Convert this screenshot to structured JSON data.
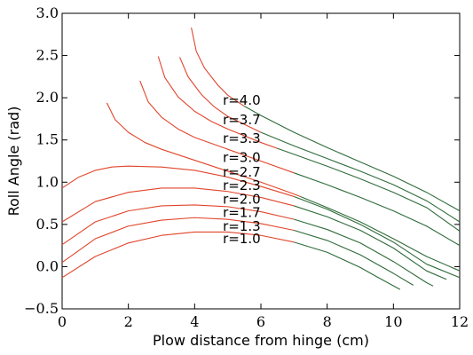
{
  "chart_data": {
    "type": "line",
    "title": "",
    "xlabel": "Plow distance from hinge (cm)",
    "ylabel": "Roll Angle (rad)",
    "xlim": [
      0,
      12
    ],
    "ylim": [
      -0.5,
      3.0
    ],
    "xticks": [
      0,
      2,
      4,
      6,
      8,
      10,
      12
    ],
    "yticks": [
      -0.5,
      0.0,
      0.5,
      1.0,
      1.5,
      2.0,
      2.5,
      3.0
    ],
    "grid": false,
    "colors": {
      "segment_a": "#e0452b",
      "segment_b": "#2f6b3a"
    },
    "label_anchor": {
      "x": 4.85
    },
    "series": [
      {
        "name": "r=1.0",
        "label_y": 0.34,
        "split_x": 7.0,
        "x": [
          0,
          1,
          2,
          3,
          4,
          5,
          6,
          7,
          8,
          9,
          9.5,
          10.2
        ],
        "y": [
          -0.13,
          0.12,
          0.28,
          0.37,
          0.41,
          0.41,
          0.37,
          0.29,
          0.17,
          -0.01,
          -0.12,
          -0.27
        ]
      },
      {
        "name": "r=1.3",
        "label_y": 0.49,
        "split_x": 7.0,
        "x": [
          0,
          1,
          2,
          3,
          4,
          5,
          6,
          7,
          8,
          9,
          10,
          10.6
        ],
        "y": [
          0.05,
          0.33,
          0.48,
          0.55,
          0.58,
          0.56,
          0.51,
          0.43,
          0.31,
          0.14,
          -0.08,
          -0.22
        ]
      },
      {
        "name": "r=1.7",
        "label_y": 0.65,
        "split_x": 7.0,
        "x": [
          0,
          1,
          2,
          3,
          4,
          5,
          6,
          7,
          8,
          9,
          10,
          11,
          11.2
        ],
        "y": [
          0.26,
          0.53,
          0.66,
          0.72,
          0.73,
          0.71,
          0.65,
          0.56,
          0.44,
          0.28,
          0.06,
          -0.19,
          -0.23
        ]
      },
      {
        "name": "r=2.0",
        "label_y": 0.81,
        "split_x": 7.0,
        "x": [
          0,
          1,
          2,
          3,
          4,
          5,
          6,
          7,
          8,
          9,
          10,
          11,
          11.6
        ],
        "y": [
          0.53,
          0.77,
          0.88,
          0.93,
          0.93,
          0.89,
          0.82,
          0.72,
          0.59,
          0.43,
          0.22,
          -0.05,
          -0.15
        ]
      },
      {
        "name": "r=2.3",
        "label_y": 0.97,
        "split_x": 7.0,
        "x": [
          0,
          0.5,
          1,
          1.5,
          2,
          3,
          4,
          5,
          6,
          7,
          8,
          9,
          10,
          11,
          12
        ],
        "y": [
          0.93,
          1.06,
          1.14,
          1.18,
          1.19,
          1.18,
          1.14,
          1.06,
          0.95,
          0.83,
          0.68,
          0.5,
          0.29,
          0.03,
          -0.13
        ]
      },
      {
        "name": "r=2.7",
        "label_y": 1.13,
        "split_x": 7.2,
        "x": [
          1.35,
          1.6,
          2,
          2.5,
          3,
          4,
          5,
          6,
          7,
          8,
          9,
          10,
          11,
          12
        ],
        "y": [
          1.94,
          1.74,
          1.59,
          1.47,
          1.39,
          1.26,
          1.13,
          1.0,
          0.86,
          0.7,
          0.53,
          0.33,
          0.12,
          -0.05
        ]
      },
      {
        "name": "r=3.0",
        "label_y": 1.3,
        "split_x": 7.0,
        "x": [
          2.35,
          2.6,
          3,
          3.5,
          4,
          5,
          6,
          7,
          8,
          9,
          10,
          11,
          12
        ],
        "y": [
          2.2,
          1.95,
          1.77,
          1.63,
          1.53,
          1.39,
          1.25,
          1.11,
          0.97,
          0.82,
          0.66,
          0.48,
          0.25
        ]
      },
      {
        "name": "r=3.3",
        "label_y": 1.53,
        "split_x": 6.5,
        "x": [
          2.9,
          3.1,
          3.5,
          4,
          4.5,
          5,
          6,
          7,
          8,
          9,
          10,
          11,
          12
        ],
        "y": [
          2.49,
          2.24,
          2.01,
          1.84,
          1.72,
          1.63,
          1.47,
          1.33,
          1.19,
          1.04,
          0.88,
          0.7,
          0.42
        ]
      },
      {
        "name": "r=3.7",
        "label_y": 1.75,
        "split_x": 6.0,
        "x": [
          3.55,
          3.8,
          4.2,
          4.6,
          5,
          6,
          7,
          8,
          9,
          10,
          11,
          12
        ],
        "y": [
          2.48,
          2.25,
          2.04,
          1.89,
          1.78,
          1.59,
          1.43,
          1.28,
          1.13,
          0.97,
          0.78,
          0.53
        ]
      },
      {
        "name": "r=4.0",
        "label_y": 1.98,
        "split_x": 5.5,
        "x": [
          3.9,
          4.05,
          4.3,
          4.7,
          5,
          5.5,
          6,
          7,
          8,
          9,
          10,
          11,
          12
        ],
        "y": [
          2.83,
          2.55,
          2.35,
          2.15,
          2.03,
          1.9,
          1.79,
          1.59,
          1.41,
          1.24,
          1.07,
          0.88,
          0.66
        ]
      }
    ]
  }
}
